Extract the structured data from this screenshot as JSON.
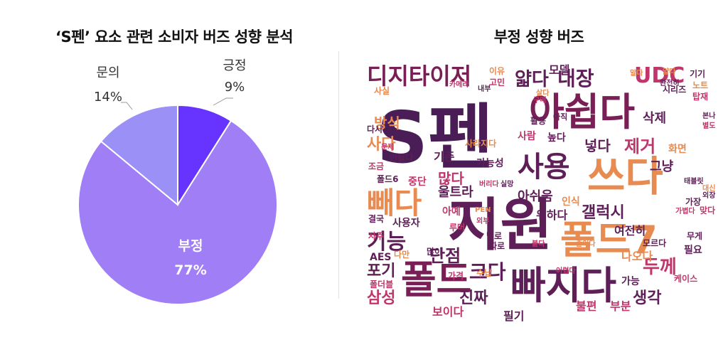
{
  "chart_data": [
    {
      "type": "pie",
      "title": "‘S펜’ 요소 관련 소비자 버즈 성향 분석",
      "slices": [
        {
          "label": "긍정",
          "value": 9,
          "value_label": "9%",
          "color": "#6633ff"
        },
        {
          "label": "부정",
          "value": 77,
          "value_label": "77%",
          "color": "#a07ef6"
        },
        {
          "label": "문의",
          "value": 14,
          "value_label": "14%",
          "color": "#9b90f5"
        }
      ]
    },
    {
      "type": "wordcloud",
      "title": "부정 성향 버즈",
      "words": [
        {
          "text": "S펜",
          "color": "#4a1d57"
        },
        {
          "text": "지원",
          "color": "#5e1f58"
        },
        {
          "text": "아쉽다",
          "color": "#7a1f55"
        },
        {
          "text": "빠지다",
          "color": "#5e1f58"
        },
        {
          "text": "쓰다",
          "color": "#e88b50"
        },
        {
          "text": "폴드7",
          "color": "#e88b50"
        },
        {
          "text": "폴드",
          "color": "#7a1f55"
        },
        {
          "text": "빼다",
          "color": "#e88b50"
        },
        {
          "text": "디지타이저",
          "color": "#7a1f55"
        },
        {
          "text": "사용",
          "color": "#5e1f58"
        },
        {
          "text": "UDC",
          "color": "#c0356a"
        },
        {
          "text": "내장",
          "color": "#5e1f58"
        },
        {
          "text": "얇다",
          "color": "#5e1f58"
        },
        {
          "text": "기능",
          "color": "#5e1f58"
        },
        {
          "text": "크다",
          "color": "#5e1f58"
        },
        {
          "text": "단점",
          "color": "#5e1f58"
        },
        {
          "text": "두께",
          "color": "#c0356a"
        },
        {
          "text": "갤럭시",
          "color": "#5e1f58"
        },
        {
          "text": "제거",
          "color": "#c0356a"
        },
        {
          "text": "삼성",
          "color": "#c0356a"
        },
        {
          "text": "진짜",
          "color": "#5e1f58"
        },
        {
          "text": "포기",
          "color": "#5e1f58"
        },
        {
          "text": "생각",
          "color": "#5e1f58"
        },
        {
          "text": "방식",
          "color": "#e88b50"
        },
        {
          "text": "사다",
          "color": "#e88b50"
        },
        {
          "text": "많다",
          "color": "#c0356a"
        },
        {
          "text": "넣다",
          "color": "#5e1f58"
        },
        {
          "text": "삭제",
          "color": "#5e1f58"
        },
        {
          "text": "그냥",
          "color": "#5e1f58"
        },
        {
          "text": "울트라",
          "color": "#5e1f58"
        },
        {
          "text": "아쉬움",
          "color": "#5e1f58"
        },
        {
          "text": "위하다",
          "color": "#5e1f58"
        },
        {
          "text": "여전히",
          "color": "#5e1f58"
        },
        {
          "text": "나오다",
          "color": "#e88b50"
        },
        {
          "text": "보이다",
          "color": "#c0356a"
        },
        {
          "text": "필기",
          "color": "#5e1f58"
        },
        {
          "text": "불편",
          "color": "#c0356a"
        },
        {
          "text": "부분",
          "color": "#c0356a"
        },
        {
          "text": "모델",
          "color": "#5e1f58"
        },
        {
          "text": "기존",
          "color": "#5e1f58"
        },
        {
          "text": "가능성",
          "color": "#5e1f58"
        },
        {
          "text": "사용자",
          "color": "#5e1f58"
        },
        {
          "text": "AES",
          "color": "#5e1f58"
        },
        {
          "text": "중단",
          "color": "#c0356a"
        },
        {
          "text": "사람",
          "color": "#c0356a"
        },
        {
          "text": "높다",
          "color": "#5e1f58"
        },
        {
          "text": "화면",
          "color": "#e88b50"
        },
        {
          "text": "아예",
          "color": "#c0356a"
        },
        {
          "text": "필요",
          "color": "#5e1f58"
        },
        {
          "text": "무게",
          "color": "#5e1f58"
        },
        {
          "text": "인식",
          "color": "#e88b50"
        },
        {
          "text": "가능",
          "color": "#5e1f58"
        },
        {
          "text": "케이스",
          "color": "#c0356a"
        },
        {
          "text": "모르다",
          "color": "#5e1f58"
        },
        {
          "text": "이유",
          "color": "#e88b50"
        },
        {
          "text": "고민",
          "color": "#c0356a"
        },
        {
          "text": "얇다",
          "color": "#e88b50"
        },
        {
          "text": "완전히",
          "color": "#5e1f58"
        },
        {
          "text": "시리즈",
          "color": "#5e1f58"
        },
        {
          "text": "기기",
          "color": "#5e1f58"
        },
        {
          "text": "노트",
          "color": "#e88b50"
        },
        {
          "text": "탑재",
          "color": "#c0356a"
        },
        {
          "text": "카메라",
          "color": "#c0356a"
        },
        {
          "text": "내부",
          "color": "#5e1f58"
        },
        {
          "text": "사실",
          "color": "#e88b50"
        },
        {
          "text": "구매",
          "color": "#c0356a"
        },
        {
          "text": "살다",
          "color": "#e88b50"
        },
        {
          "text": "다시",
          "color": "#5e1f58"
        },
        {
          "text": "활용",
          "color": "#5e1f58"
        },
        {
          "text": "아직",
          "color": "#5e1f58"
        },
        {
          "text": "문제",
          "color": "#c0356a"
        },
        {
          "text": "만들다",
          "color": "#5e1f58"
        },
        {
          "text": "사라지다",
          "color": "#e88b50"
        },
        {
          "text": "조금",
          "color": "#c0356a"
        },
        {
          "text": "폴드6",
          "color": "#5e1f58"
        },
        {
          "text": "버리다",
          "color": "#c0356a"
        },
        {
          "text": "실망",
          "color": "#5e1f58"
        },
        {
          "text": "결국",
          "color": "#5e1f58"
        },
        {
          "text": "PEN",
          "color": "#e88b50"
        },
        {
          "text": "외부",
          "color": "#c0356a"
        },
        {
          "text": "자주",
          "color": "#c0356a"
        },
        {
          "text": "루머",
          "color": "#c0356a"
        },
        {
          "text": "별로",
          "color": "#5e1f58"
        },
        {
          "text": "따로",
          "color": "#5e1f58"
        },
        {
          "text": "다만",
          "color": "#e88b50"
        },
        {
          "text": "많이",
          "color": "#5e1f58"
        },
        {
          "text": "수납",
          "color": "#e88b50"
        },
        {
          "text": "붙다",
          "color": "#c0356a"
        },
        {
          "text": "줄이다",
          "color": "#e88b50"
        },
        {
          "text": "가격",
          "color": "#c0356a"
        },
        {
          "text": "어렵다",
          "color": "#c0356a"
        },
        {
          "text": "폴더블",
          "color": "#c0356a"
        },
        {
          "text": "가장",
          "color": "#5e1f58"
        },
        {
          "text": "외장",
          "color": "#5e1f58"
        },
        {
          "text": "맞다",
          "color": "#c0356a"
        },
        {
          "text": "가볍다",
          "color": "#c0356a"
        },
        {
          "text": "대신",
          "color": "#e88b50"
        },
        {
          "text": "태블릿",
          "color": "#5e1f58"
        },
        {
          "text": "별도",
          "color": "#c0356a"
        },
        {
          "text": "본나",
          "color": "#5e1f58"
        },
        {
          "text": "알다",
          "color": "#e88b50"
        }
      ]
    }
  ]
}
